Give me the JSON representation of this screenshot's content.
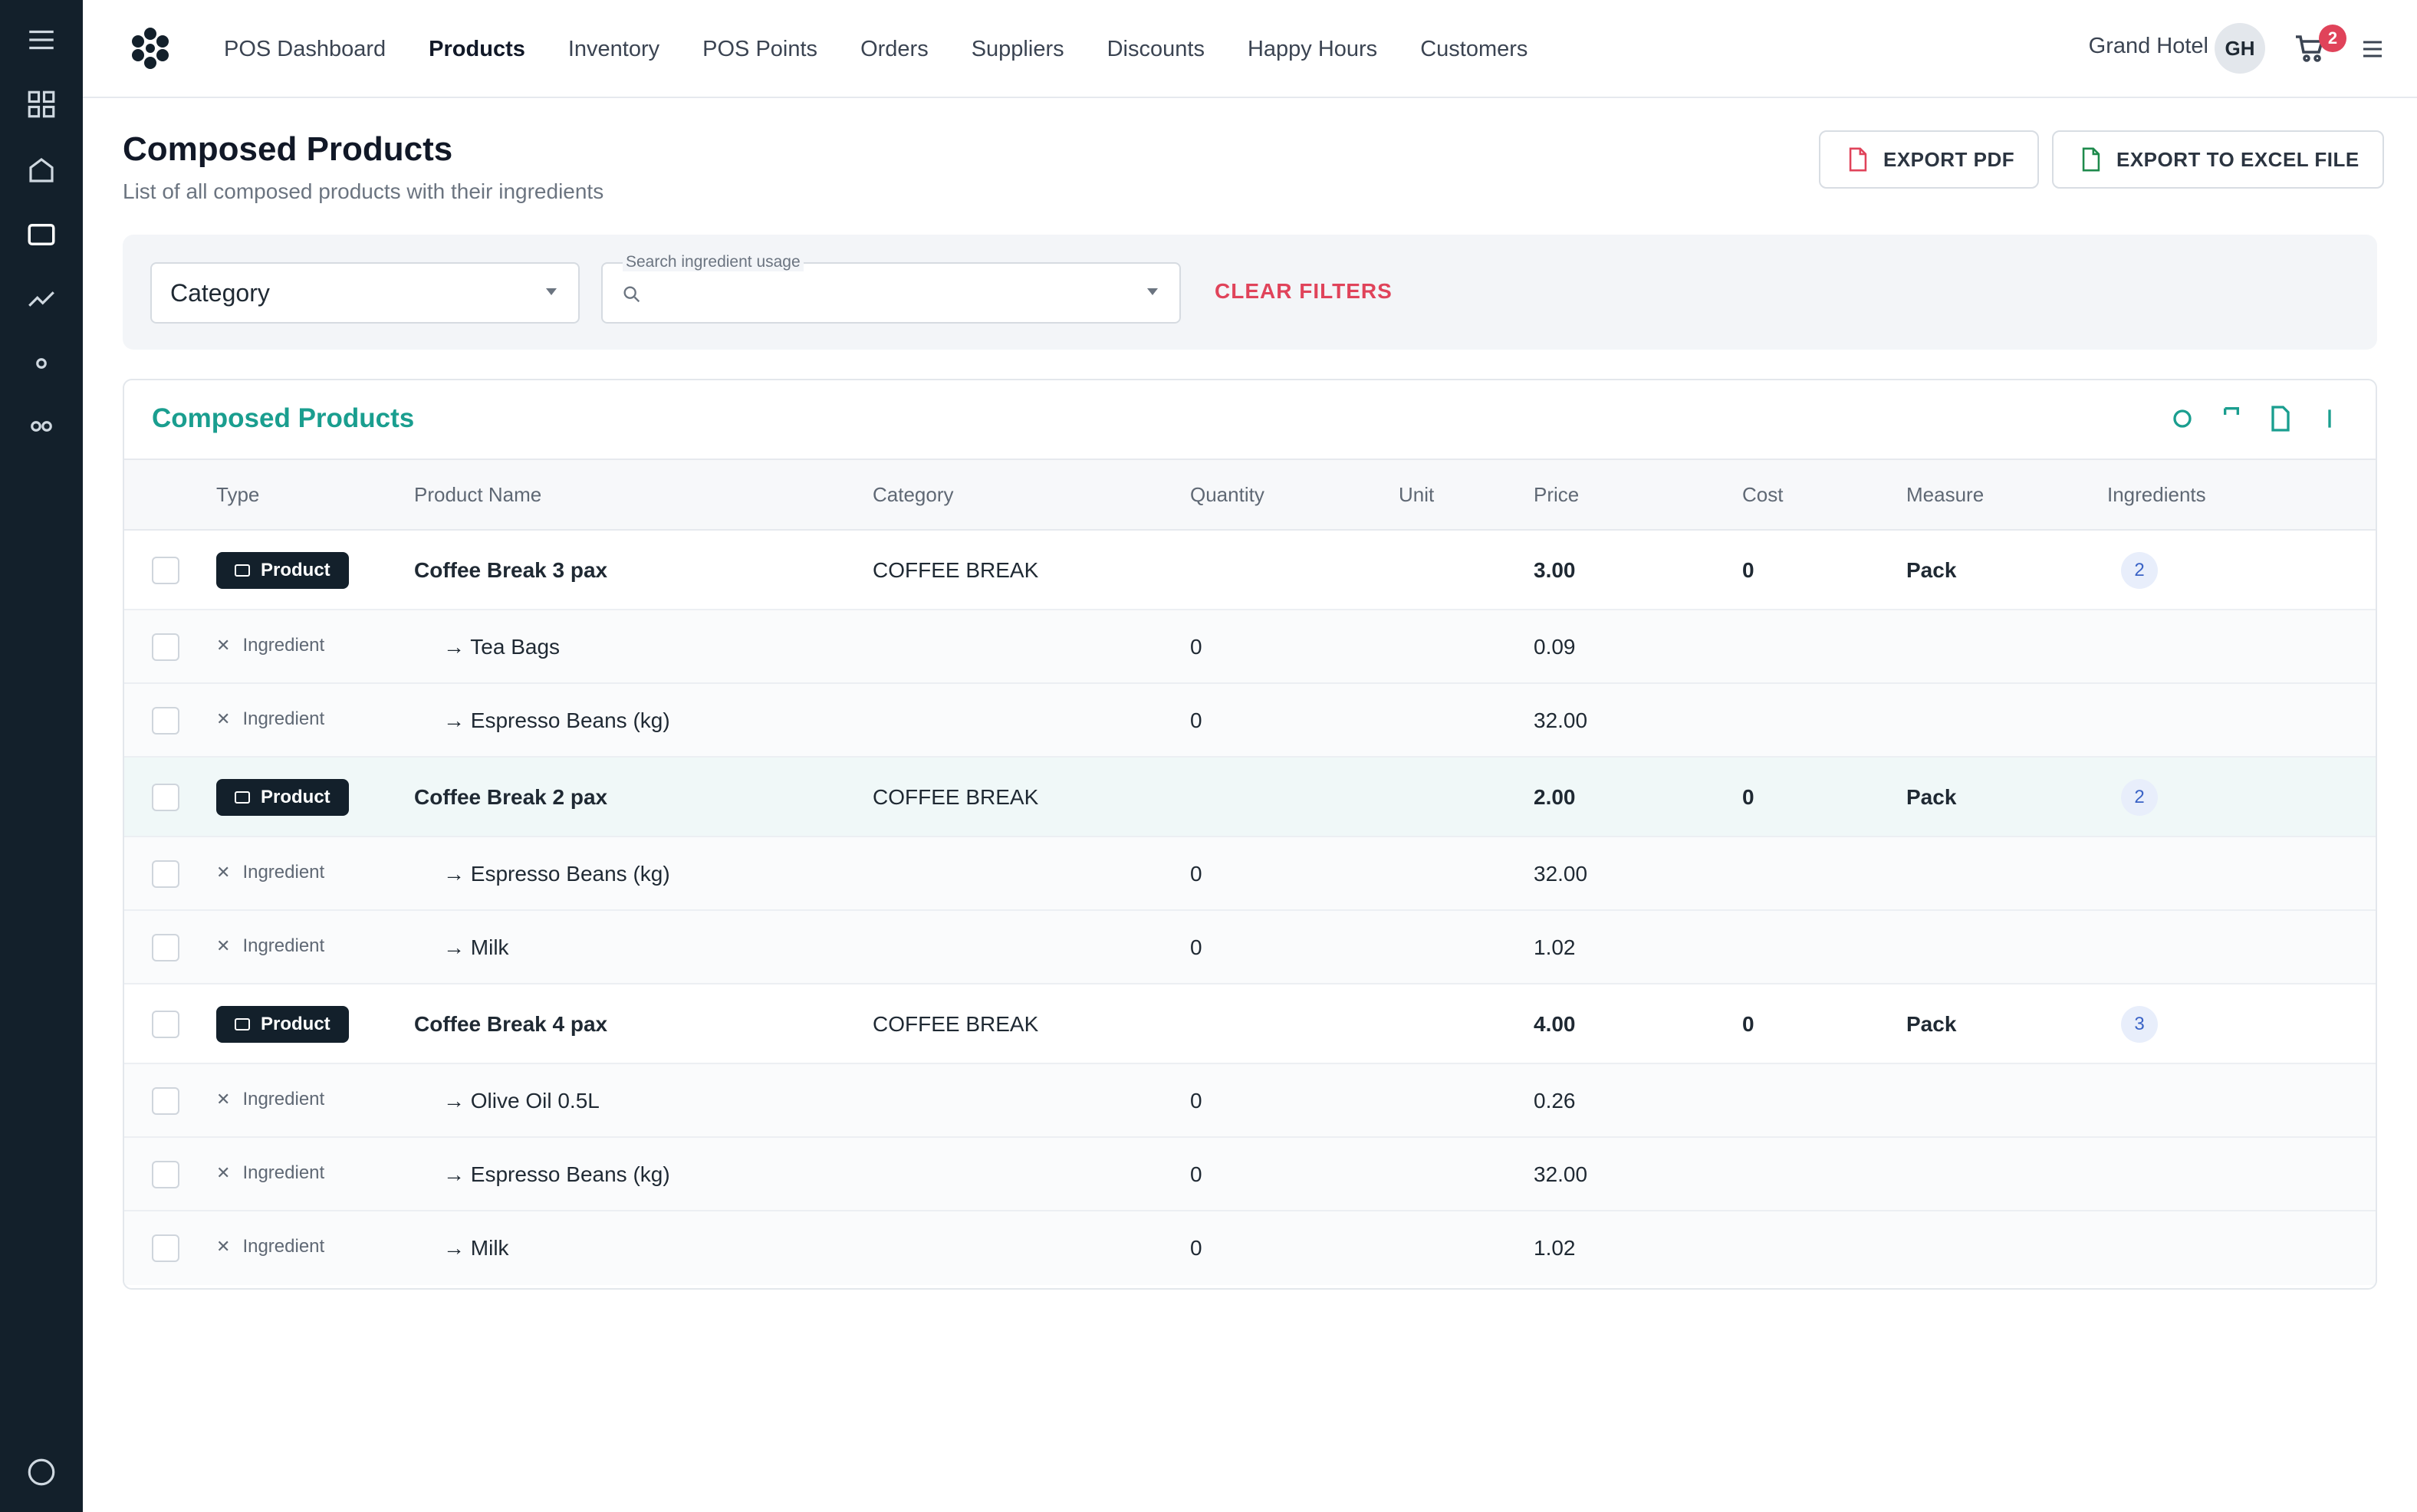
{
  "nav": {
    "items": [
      "POS Dashboard",
      "Products",
      "Inventory",
      "POS Points",
      "Orders",
      "Suppliers",
      "Discounts",
      "Happy Hours",
      "Customers"
    ],
    "active": "Products"
  },
  "header": {
    "hotel": "Grand Hotel",
    "avatar_initials": "GH",
    "cart_count": "2"
  },
  "page": {
    "title": "Composed Products",
    "subtitle": "List of all composed products with their ingredients",
    "export_pdf": "EXPORT PDF",
    "export_excel": "EXPORT TO EXCEL FILE"
  },
  "filters": {
    "category": "Category",
    "search_label": "Search ingredient usage",
    "search_value": "",
    "clear": "CLEAR FILTERS"
  },
  "table": {
    "title": "Composed Products",
    "columns": [
      "Type",
      "Product Name",
      "Category",
      "Quantity",
      "Unit",
      "Price",
      "Cost",
      "Measure",
      "Ingredients"
    ],
    "rows": [
      {
        "kind": "product",
        "type": "Product",
        "name": "Coffee Break 3 pax",
        "category": "COFFEE BREAK",
        "quantity": "",
        "unit": "",
        "price": "3.00",
        "cost": "0",
        "measure": "Pack",
        "ingredients": "2"
      },
      {
        "kind": "ingredient",
        "type": "Ingredient",
        "name": "→ Tea Bags",
        "quantity": "0",
        "price": "0.09"
      },
      {
        "kind": "ingredient",
        "type": "Ingredient",
        "name": "→ Espresso Beans (kg)",
        "quantity": "0",
        "price": "32.00"
      },
      {
        "kind": "product",
        "type": "Product",
        "name": "Coffee Break 2 pax",
        "category": "COFFEE BREAK",
        "quantity": "",
        "unit": "",
        "price": "2.00",
        "cost": "0",
        "measure": "Pack",
        "ingredients": "2"
      },
      {
        "kind": "ingredient",
        "type": "Ingredient",
        "name": "→ Espresso Beans (kg)",
        "quantity": "0",
        "price": "32.00"
      },
      {
        "kind": "ingredient",
        "type": "Ingredient",
        "name": "→ Milk",
        "quantity": "0",
        "price": "1.02"
      },
      {
        "kind": "product",
        "type": "Product",
        "name": "Coffee Break 4 pax",
        "category": "COFFEE BREAK",
        "quantity": "",
        "unit": "",
        "price": "4.00",
        "cost": "0",
        "measure": "Pack",
        "ingredients": "3"
      },
      {
        "kind": "ingredient",
        "type": "Ingredient",
        "name": "→ Olive Oil 0.5L",
        "quantity": "0",
        "price": "0.26"
      },
      {
        "kind": "ingredient",
        "type": "Ingredient",
        "name": "→ Espresso Beans (kg)",
        "quantity": "0",
        "price": "32.00"
      },
      {
        "kind": "ingredient",
        "type": "Ingredient",
        "name": "→ Milk",
        "quantity": "0",
        "price": "1.02"
      }
    ]
  },
  "icons": {
    "sidebar": [
      "menu-icon",
      "grid-icon",
      "home-icon",
      "products-icon",
      "chart-icon",
      "dot-icon",
      "link-icon",
      "circle-icon"
    ],
    "table_tools": [
      "refresh-icon",
      "bookmark-icon",
      "file-icon",
      "more-icon"
    ]
  },
  "colors": {
    "sidebar": "#13202b",
    "accent": "#1a9e8f",
    "danger": "#e0435a"
  }
}
